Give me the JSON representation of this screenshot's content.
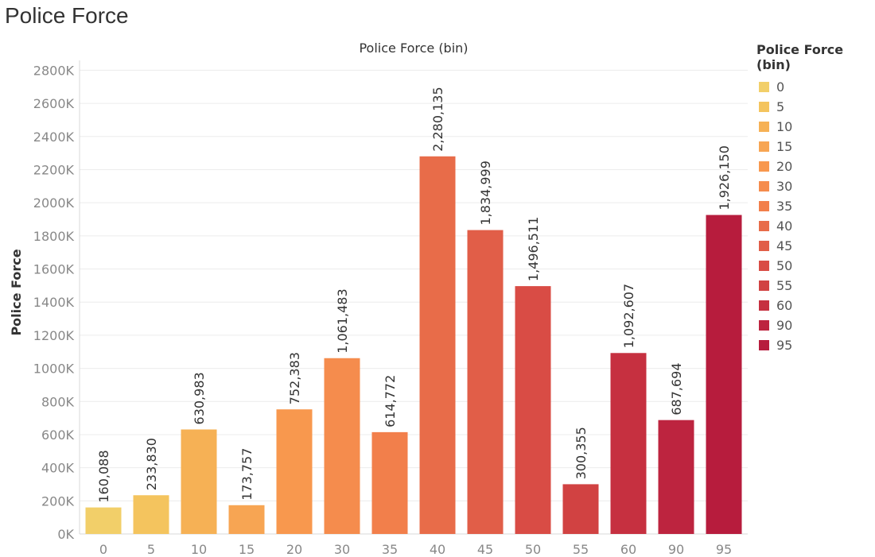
{
  "page": {
    "title": "Police Force"
  },
  "chart_data": {
    "type": "bar",
    "title": "Police Force (bin)",
    "xlabel": "",
    "ylabel": "Police Force",
    "categories": [
      "0",
      "5",
      "10",
      "15",
      "20",
      "30",
      "35",
      "40",
      "45",
      "50",
      "55",
      "60",
      "90",
      "95"
    ],
    "values": [
      160088,
      233830,
      630983,
      173757,
      752383,
      1061483,
      614772,
      2280135,
      1834999,
      1496511,
      300355,
      1092607,
      687694,
      1926150
    ],
    "data_labels": [
      "160,088",
      "233,830",
      "630,983",
      "173,757",
      "752,383",
      "1,061,483",
      "614,772",
      "2,280,135",
      "1,834,999",
      "1,496,511",
      "300,355",
      "1,092,607",
      "687,694",
      "1,926,150"
    ],
    "colors": [
      "#f2cf69",
      "#f4c45e",
      "#f6b155",
      "#f7a553",
      "#f8984e",
      "#f58c4d",
      "#f27f4b",
      "#e86c49",
      "#e15e48",
      "#d94c45",
      "#d14242",
      "#c63040",
      "#bd243f",
      "#b71c3d"
    ],
    "ylim": [
      0,
      2850000
    ],
    "yticks": [
      0,
      200000,
      400000,
      600000,
      800000,
      1000000,
      1200000,
      1400000,
      1600000,
      1800000,
      2000000,
      2200000,
      2400000,
      2600000,
      2800000
    ],
    "ytick_labels": [
      "0K",
      "200K",
      "400K",
      "600K",
      "800K",
      "1000K",
      "1200K",
      "1400K",
      "1600K",
      "1800K",
      "2000K",
      "2200K",
      "2400K",
      "2600K",
      "2800K"
    ],
    "grid": true,
    "legend": {
      "title": "Police Force (bin)",
      "position": "right",
      "items": [
        "0",
        "5",
        "10",
        "15",
        "20",
        "30",
        "35",
        "40",
        "45",
        "50",
        "55",
        "60",
        "90",
        "95"
      ]
    }
  }
}
